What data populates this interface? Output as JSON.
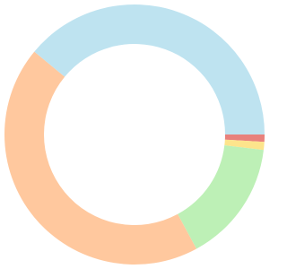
{
  "chart_data": {
    "type": "donut",
    "values": [
      0.9,
      1.0,
      15.2,
      43.9,
      39.0
    ],
    "colors": [
      "#e8817c",
      "#fde48c",
      "#bdf0b6",
      "#ffc89e",
      "#bee3f0"
    ]
  }
}
